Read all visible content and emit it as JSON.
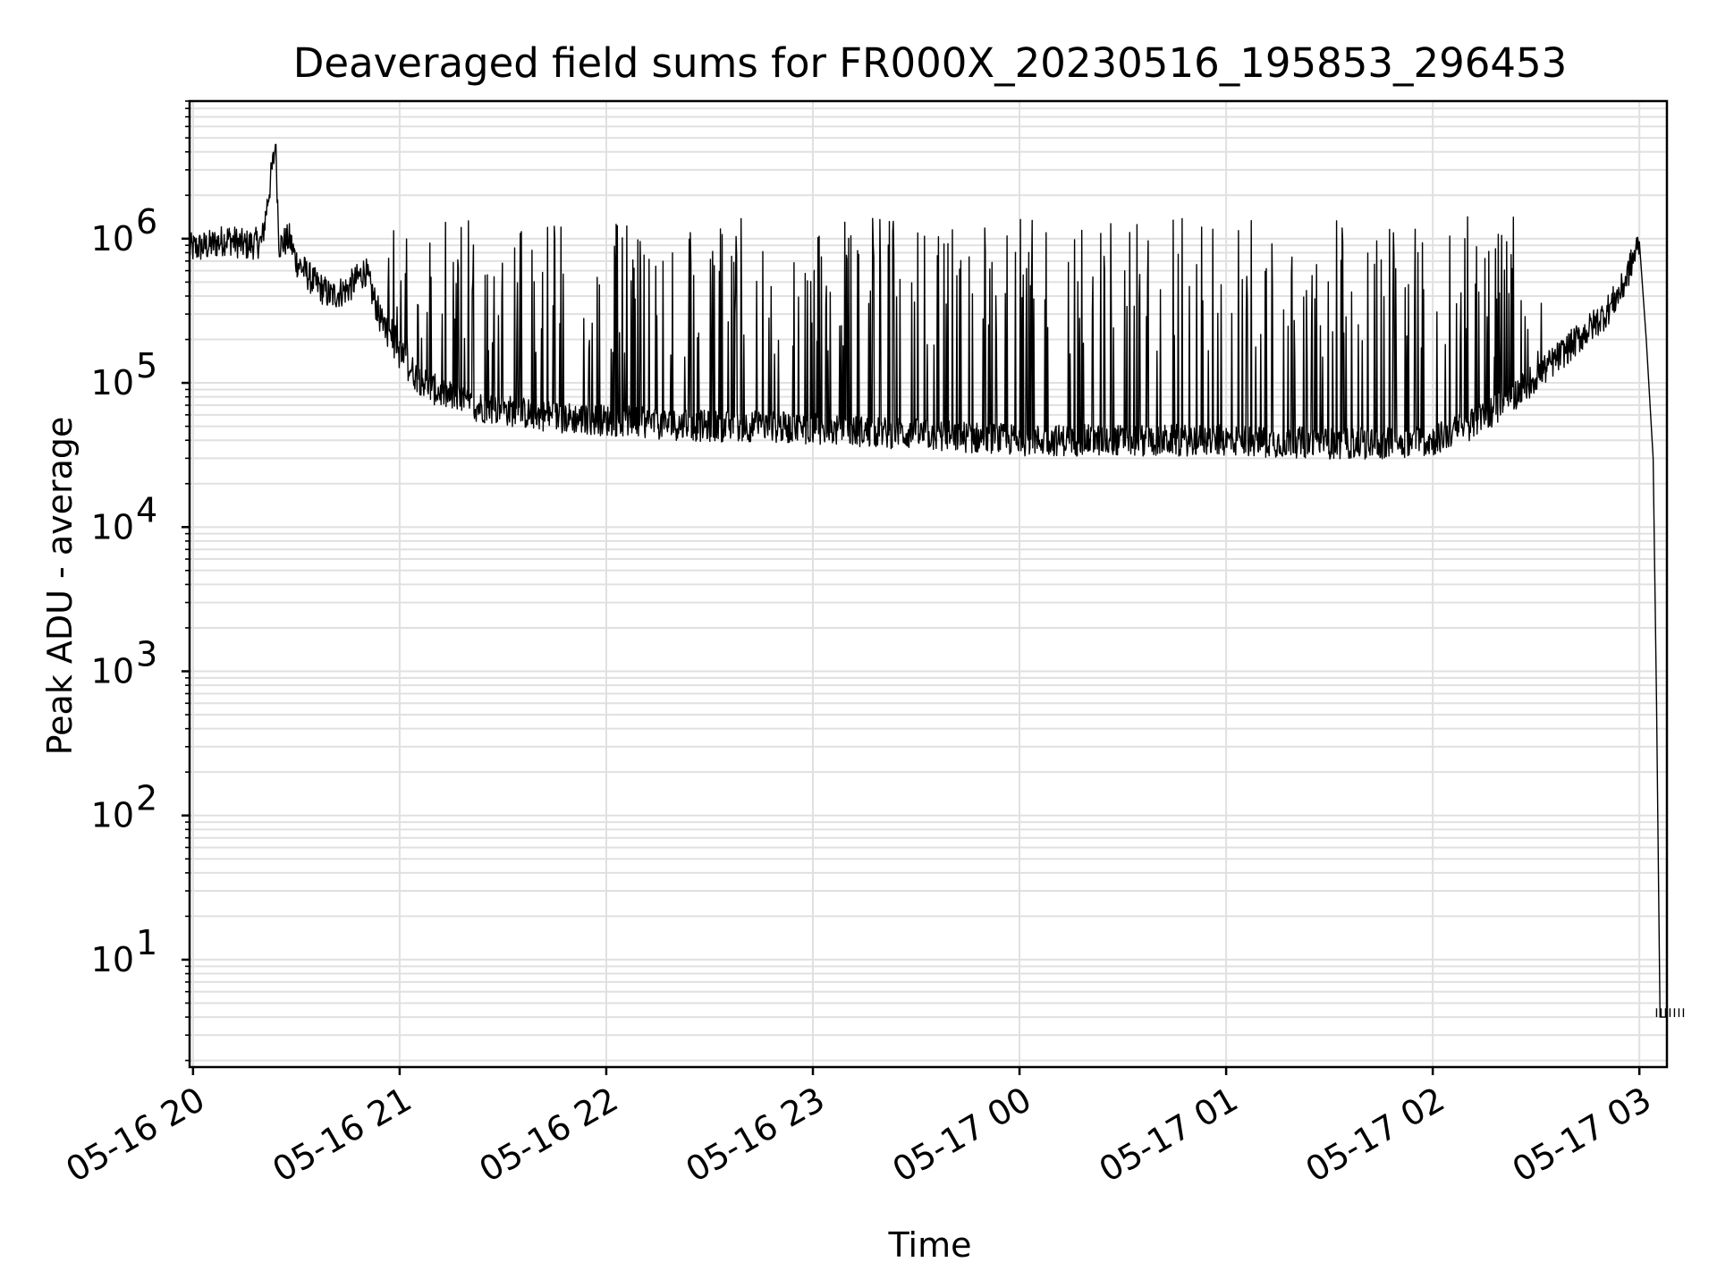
{
  "chart_data": {
    "type": "line",
    "title": "Deaveraged field sums for FR000X_20230516_195853_296453",
    "xlabel": "Time",
    "ylabel": "Peak ADU - average",
    "yscale": "log",
    "grid": true,
    "grid_minor": true,
    "xlim": [
      "05-16 19:59",
      "05-17 03:08"
    ],
    "ylim": [
      1.8,
      9000000
    ],
    "xticks": [
      "05-16 20",
      "05-16 21",
      "05-16 22",
      "05-16 23",
      "05-17 00",
      "05-17 01",
      "05-17 02",
      "05-17 03"
    ],
    "yticks": [
      {
        "base": "10",
        "exp": "1",
        "value": 10
      },
      {
        "base": "10",
        "exp": "2",
        "value": 100
      },
      {
        "base": "10",
        "exp": "3",
        "value": 1000
      },
      {
        "base": "10",
        "exp": "4",
        "value": 10000
      },
      {
        "base": "10",
        "exp": "5",
        "value": 100000
      },
      {
        "base": "10",
        "exp": "6",
        "value": 1000000
      }
    ],
    "series": [
      {
        "color": "#000000",
        "x": [
          "05-16 19:59",
          "05-16 20:05",
          "05-16 20:10",
          "05-16 20:15",
          "05-16 20:20",
          "05-16 20:24",
          "05-16 20:25",
          "05-16 20:28",
          "05-16 20:30",
          "05-16 20:35",
          "05-16 20:40",
          "05-16 20:45",
          "05-16 20:50",
          "05-16 20:55",
          "05-16 21:00",
          "05-16 21:05",
          "05-16 21:10",
          "05-16 21:15",
          "05-16 21:20",
          "05-16 21:30",
          "05-16 21:40",
          "05-16 21:50",
          "05-16 22:00",
          "05-16 22:15",
          "05-16 22:30",
          "05-16 22:45",
          "05-16 23:00",
          "05-16 23:15",
          "05-16 23:30",
          "05-16 23:45",
          "05-17 00:00",
          "05-17 00:15",
          "05-17 00:30",
          "05-17 00:45",
          "05-17 01:00",
          "05-17 01:15",
          "05-17 01:30",
          "05-17 01:45",
          "05-17 02:00",
          "05-17 02:10",
          "05-17 02:20",
          "05-17 02:30",
          "05-17 02:40",
          "05-17 02:50",
          "05-17 02:55",
          "05-17 03:00",
          "05-17 03:02",
          "05-17 03:04",
          "05-17 03:05",
          "05-17 03:06",
          "05-17 03:08"
        ],
        "y": [
          850000,
          900000,
          1000000,
          900000,
          950000,
          4500000,
          900000,
          1000000,
          700000,
          500000,
          400000,
          450000,
          600000,
          250000,
          160000,
          110000,
          90000,
          80000,
          70000,
          65000,
          60000,
          57000,
          55000,
          52000,
          50000,
          50000,
          48000,
          46000,
          44000,
          42000,
          40000,
          40000,
          40000,
          40000,
          40000,
          39000,
          38000,
          38000,
          40000,
          50000,
          70000,
          110000,
          180000,
          300000,
          450000,
          950000,
          200000,
          30000,
          600,
          4,
          4
        ]
      }
    ],
    "spikes": {
      "description": "dense spikes rising above the baseline between 05-16 20:55 and 05-17 02:30",
      "peak_range": [
        150000,
        1600000
      ]
    }
  }
}
